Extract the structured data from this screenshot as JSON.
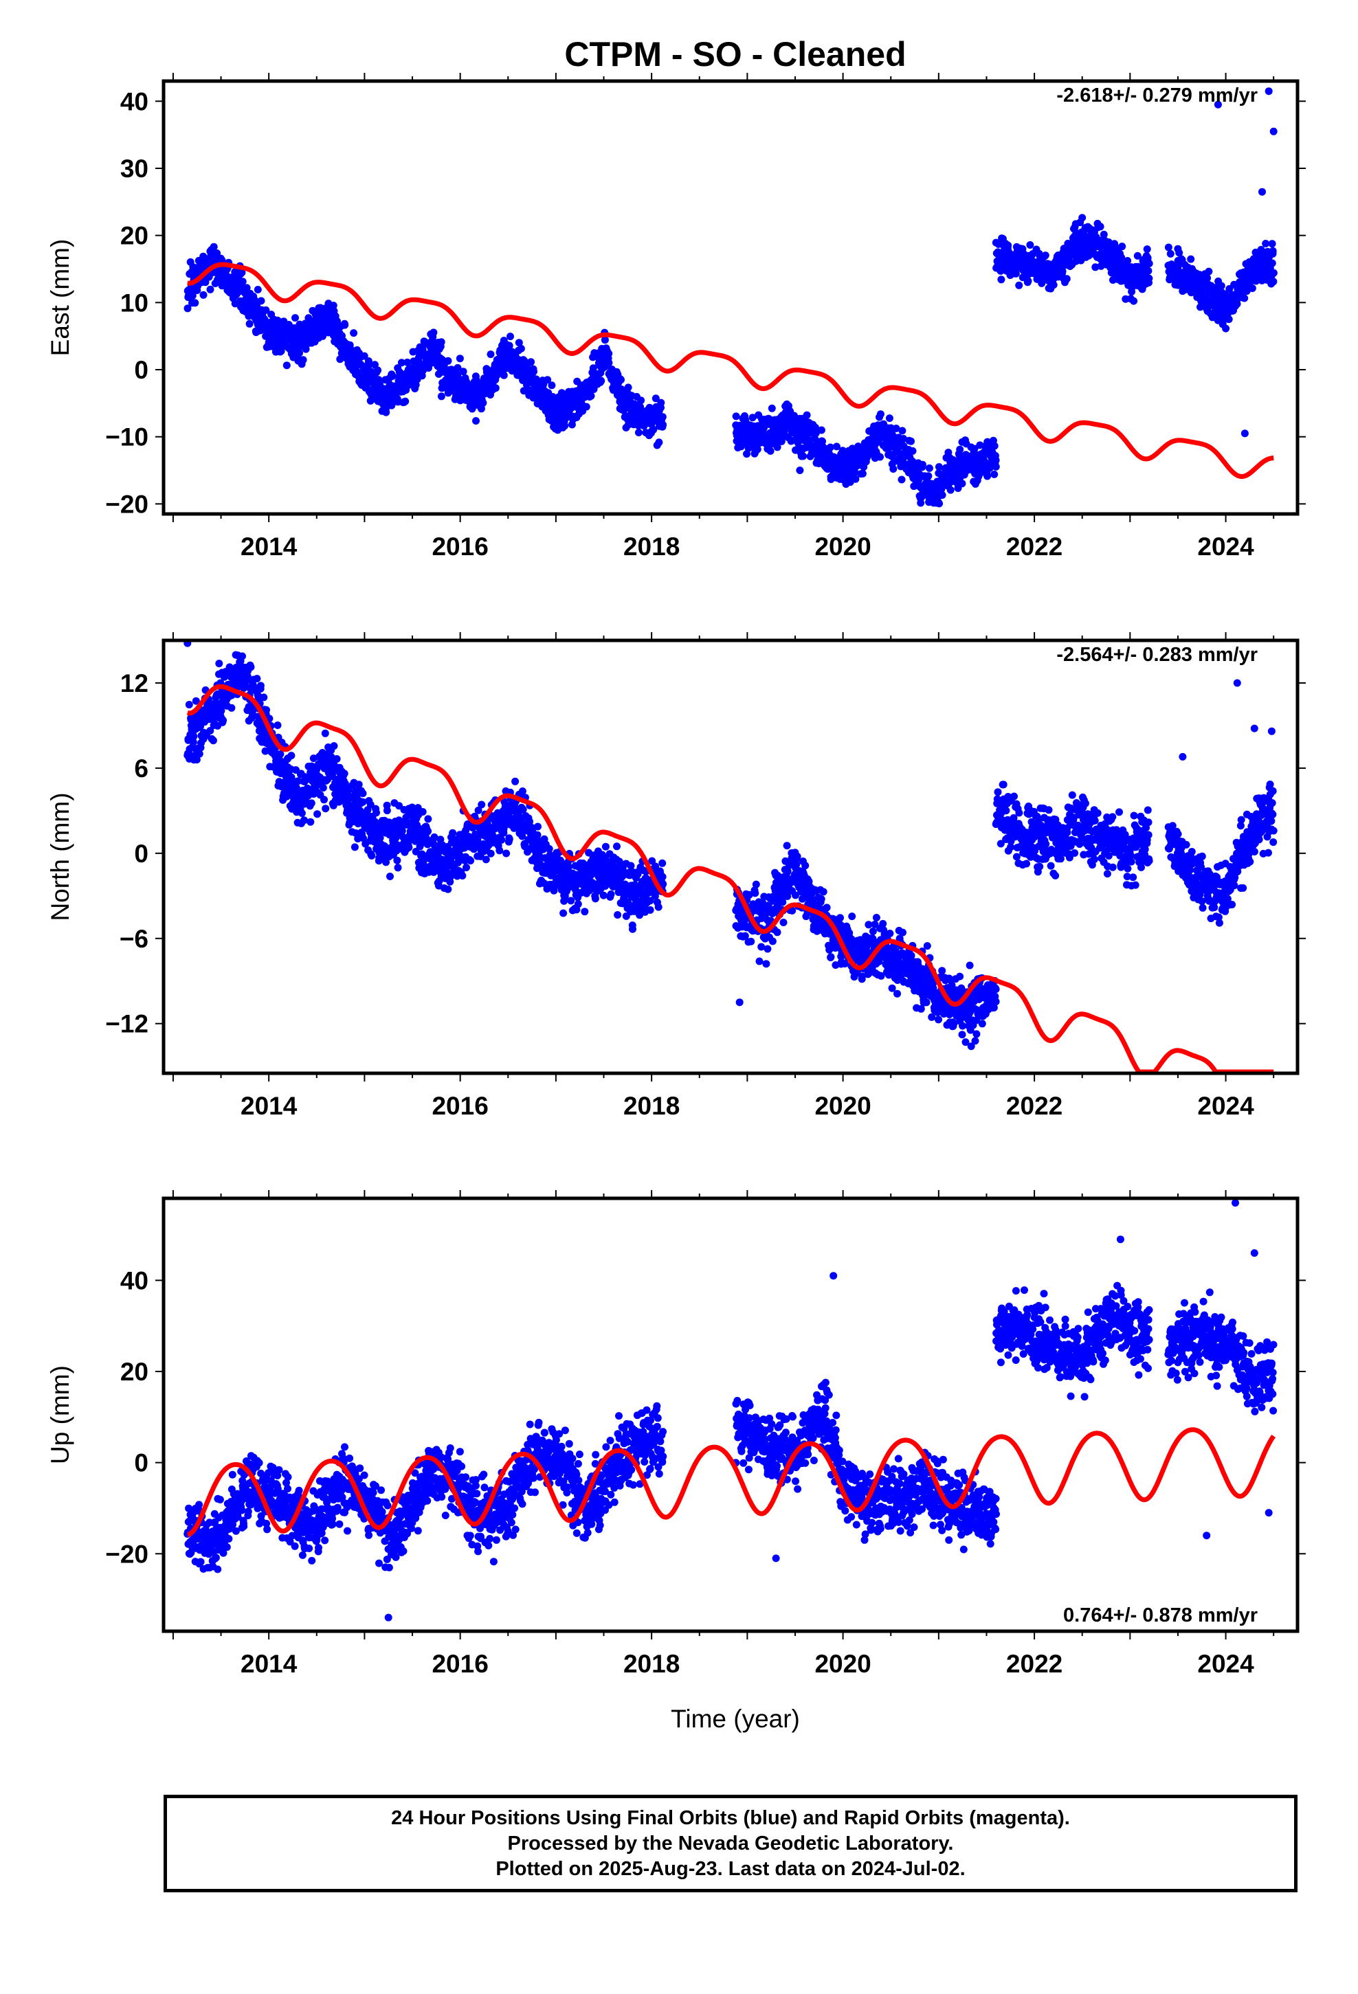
{
  "title": "CTPM  - SO - Cleaned",
  "xlabel": "Time (year)",
  "footer": {
    "line1": "24 Hour Positions Using Final Orbits (blue) and Rapid Orbits (magenta).",
    "line2": "Processed by the Nevada Geodetic Laboratory.",
    "line3": "Plotted on 2025-Aug-23. Last data on 2024-Jul-02."
  },
  "colors": {
    "observations": "#0000ff",
    "model": "#ff0000",
    "rapid_orbits": "#ff00ff"
  },
  "chart_data": [
    {
      "type": "scatter",
      "component": "east",
      "ylabel": "East (mm)",
      "rate_text": "-2.618+/- 0.279 mm/yr",
      "xlim": [
        2012.9,
        2024.75
      ],
      "ylim": [
        -21.5,
        43
      ],
      "xticks": [
        2014,
        2016,
        2018,
        2020,
        2022,
        2024
      ],
      "yticks": [
        -20,
        -10,
        0,
        10,
        20,
        30,
        40
      ],
      "series": [
        {
          "kind": "observations",
          "segments": [
            [
              2013.15,
              2018.12
            ],
            [
              2018.88,
              2021.6
            ],
            [
              2021.6,
              2023.2
            ],
            [
              2023.4,
              2024.5
            ]
          ],
          "track": [
            [
              2013.15,
              12
            ],
            [
              2013.4,
              16
            ],
            [
              2013.7,
              12
            ],
            [
              2014.0,
              6
            ],
            [
              2014.3,
              4
            ],
            [
              2014.6,
              8
            ],
            [
              2014.9,
              1
            ],
            [
              2015.2,
              -4
            ],
            [
              2015.5,
              -1
            ],
            [
              2015.7,
              3
            ],
            [
              2015.9,
              -2
            ],
            [
              2016.2,
              -4
            ],
            [
              2016.5,
              3
            ],
            [
              2016.75,
              -2
            ],
            [
              2017.0,
              -7
            ],
            [
              2017.3,
              -4
            ],
            [
              2017.5,
              2
            ],
            [
              2017.7,
              -5
            ],
            [
              2018.12,
              -8
            ],
            [
              2018.88,
              -9
            ],
            [
              2019.1,
              -10
            ],
            [
              2019.4,
              -8
            ],
            [
              2019.7,
              -11
            ],
            [
              2019.9,
              -15
            ],
            [
              2020.2,
              -13
            ],
            [
              2020.4,
              -9
            ],
            [
              2020.7,
              -14
            ],
            [
              2020.95,
              -19
            ],
            [
              2021.2,
              -14
            ],
            [
              2021.6,
              -13
            ],
            [
              2021.6,
              17
            ],
            [
              2021.9,
              16
            ],
            [
              2022.2,
              14
            ],
            [
              2022.5,
              20
            ],
            [
              2022.8,
              17
            ],
            [
              2023.0,
              13
            ],
            [
              2023.2,
              15
            ],
            [
              2023.4,
              15
            ],
            [
              2023.7,
              13
            ],
            [
              2024.0,
              9
            ],
            [
              2024.3,
              15
            ],
            [
              2024.5,
              16
            ]
          ],
          "spread": 2.0,
          "outliers": [
            [
              2024.45,
              41.5
            ],
            [
              2024.5,
              35.5
            ],
            [
              2023.92,
              39.5
            ],
            [
              2024.2,
              -9.5
            ],
            [
              2024.38,
              26.5
            ],
            [
              2023.5,
              18
            ],
            [
              2019.55,
              -15
            ]
          ]
        },
        {
          "kind": "model",
          "rate": -2.618,
          "value_at_start": 15.3,
          "annual_amplitude": 1.9,
          "semiannual_amplitude": 0.5,
          "x_range": [
            2013.15,
            2024.5
          ]
        }
      ]
    },
    {
      "type": "scatter",
      "component": "north",
      "ylabel": "North (mm)",
      "rate_text": "-2.564+/- 0.283 mm/yr",
      "xlim": [
        2012.9,
        2024.75
      ],
      "ylim": [
        -15.5,
        15
      ],
      "xticks": [
        2014,
        2016,
        2018,
        2020,
        2022,
        2024
      ],
      "yticks": [
        -12,
        -6,
        0,
        6,
        12
      ],
      "series": [
        {
          "kind": "observations",
          "segments": [
            [
              2013.15,
              2018.12
            ],
            [
              2018.88,
              2021.6
            ],
            [
              2021.6,
              2023.2
            ],
            [
              2023.4,
              2024.5
            ]
          ],
          "track": [
            [
              2013.15,
              8
            ],
            [
              2013.4,
              10
            ],
            [
              2013.7,
              13
            ],
            [
              2014.0,
              8
            ],
            [
              2014.3,
              4
            ],
            [
              2014.6,
              6
            ],
            [
              2014.9,
              3
            ],
            [
              2015.2,
              1
            ],
            [
              2015.5,
              2
            ],
            [
              2015.8,
              -1
            ],
            [
              2016.1,
              1
            ],
            [
              2016.4,
              2
            ],
            [
              2016.6,
              3
            ],
            [
              2016.9,
              -1
            ],
            [
              2017.2,
              -2
            ],
            [
              2017.5,
              -1
            ],
            [
              2017.8,
              -3
            ],
            [
              2018.12,
              -2
            ],
            [
              2018.88,
              -4
            ],
            [
              2019.2,
              -5
            ],
            [
              2019.5,
              -1
            ],
            [
              2019.8,
              -5
            ],
            [
              2020.1,
              -7
            ],
            [
              2020.4,
              -7
            ],
            [
              2020.7,
              -8
            ],
            [
              2021.0,
              -10
            ],
            [
              2021.3,
              -11
            ],
            [
              2021.6,
              -10
            ],
            [
              2021.6,
              3
            ],
            [
              2021.9,
              1
            ],
            [
              2022.2,
              1
            ],
            [
              2022.5,
              2
            ],
            [
              2022.8,
              1
            ],
            [
              2023.0,
              0
            ],
            [
              2023.2,
              1
            ],
            [
              2023.4,
              1
            ],
            [
              2023.7,
              -2
            ],
            [
              2024.0,
              -3
            ],
            [
              2024.3,
              2
            ],
            [
              2024.5,
              3
            ]
          ],
          "spread": 1.4,
          "outliers": [
            [
              2013.15,
              14.8
            ],
            [
              2024.12,
              12
            ],
            [
              2024.3,
              8.8
            ],
            [
              2024.48,
              8.6
            ],
            [
              2018.92,
              -10.5
            ],
            [
              2023.55,
              6.8
            ]
          ]
        },
        {
          "kind": "model",
          "rate": -2.564,
          "value_at_start": 11.7,
          "annual_amplitude": 1.4,
          "semiannual_amplitude": 0.4,
          "x_range": [
            2013.15,
            2024.5
          ]
        }
      ]
    },
    {
      "type": "scatter",
      "component": "up",
      "ylabel": "Up (mm)",
      "rate_text": "0.764+/- 0.878 mm/yr",
      "xlim": [
        2012.9,
        2024.75
      ],
      "ylim": [
        -37,
        58
      ],
      "xticks": [
        2014,
        2016,
        2018,
        2020,
        2022,
        2024
      ],
      "yticks": [
        -20,
        0,
        20,
        40
      ],
      "series": [
        {
          "kind": "observations",
          "segments": [
            [
              2013.15,
              2018.12
            ],
            [
              2018.88,
              2021.6
            ],
            [
              2021.6,
              2023.2
            ],
            [
              2023.4,
              2024.5
            ]
          ],
          "track": [
            [
              2013.15,
              -15
            ],
            [
              2013.4,
              -18
            ],
            [
              2013.8,
              -5
            ],
            [
              2014.1,
              -8
            ],
            [
              2014.4,
              -15
            ],
            [
              2014.8,
              -5
            ],
            [
              2015.1,
              -10
            ],
            [
              2015.3,
              -18
            ],
            [
              2015.6,
              -5
            ],
            [
              2015.9,
              -2
            ],
            [
              2016.2,
              -12
            ],
            [
              2016.5,
              -10
            ],
            [
              2016.8,
              3
            ],
            [
              2017.1,
              0
            ],
            [
              2017.3,
              -10
            ],
            [
              2017.6,
              -2
            ],
            [
              2017.9,
              6
            ],
            [
              2018.12,
              2
            ],
            [
              2018.88,
              8
            ],
            [
              2019.2,
              4
            ],
            [
              2019.5,
              2
            ],
            [
              2019.8,
              12
            ],
            [
              2020.0,
              -5
            ],
            [
              2020.3,
              -10
            ],
            [
              2020.6,
              -8
            ],
            [
              2020.9,
              -5
            ],
            [
              2021.2,
              -10
            ],
            [
              2021.6,
              -12
            ],
            [
              2021.6,
              28
            ],
            [
              2021.9,
              30
            ],
            [
              2022.2,
              25
            ],
            [
              2022.5,
              22
            ],
            [
              2022.8,
              32
            ],
            [
              2023.0,
              30
            ],
            [
              2023.2,
              28
            ],
            [
              2023.4,
              25
            ],
            [
              2023.7,
              28
            ],
            [
              2024.0,
              26
            ],
            [
              2024.3,
              18
            ],
            [
              2024.5,
              20
            ]
          ],
          "spread": 5.0,
          "outliers": [
            [
              2024.1,
              57
            ],
            [
              2024.3,
              46
            ],
            [
              2022.9,
              49
            ],
            [
              2015.25,
              -34
            ],
            [
              2019.9,
              41
            ],
            [
              2023.8,
              -16
            ],
            [
              2024.45,
              -11
            ],
            [
              2019.3,
              -21
            ]
          ]
        },
        {
          "kind": "model",
          "rate": 0.764,
          "value_at_start": -7.5,
          "annual_amplitude": 7.5,
          "semiannual_amplitude": 0.8,
          "x_range": [
            2013.15,
            2024.5
          ]
        }
      ]
    }
  ]
}
